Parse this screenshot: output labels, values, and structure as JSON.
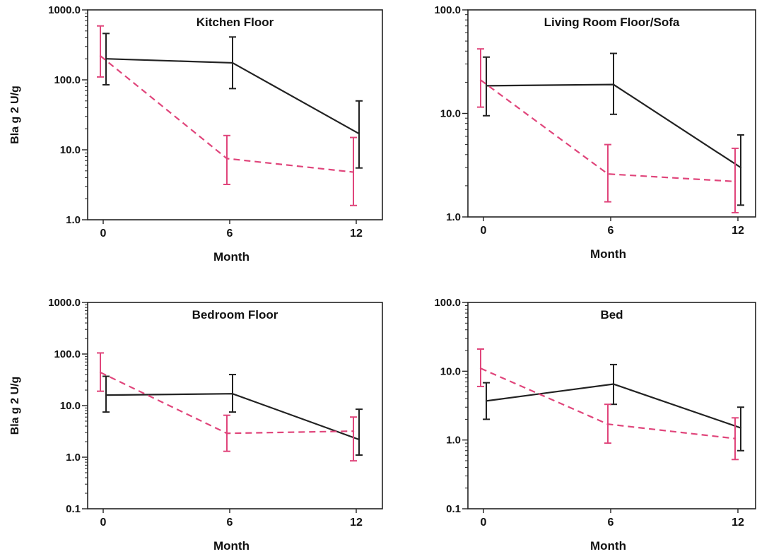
{
  "colors": {
    "solid_series": "#222222",
    "dashed_series": "#e0457b",
    "axis": "#222222"
  },
  "chart_data": [
    {
      "type": "line",
      "title": "Kitchen Floor",
      "xlabel": "Month",
      "ylabel": "Bla g 2 U/g",
      "yscale": "log",
      "ylim": [
        1,
        1000
      ],
      "yticks": [
        "1.0",
        "10.0",
        "100.0",
        "1000.0"
      ],
      "xticks": [
        "0",
        "6",
        "12"
      ],
      "x": [
        0,
        6,
        12
      ],
      "series": [
        {
          "style": "solid",
          "values": [
            200,
            175,
            17
          ],
          "err_low": [
            85,
            75,
            5.5
          ],
          "err_high": [
            460,
            410,
            50
          ]
        },
        {
          "style": "dashed",
          "values": [
            220,
            7.5,
            4.8
          ],
          "err_low": [
            110,
            3.2,
            1.6
          ],
          "err_high": [
            590,
            16,
            15
          ]
        }
      ]
    },
    {
      "type": "line",
      "title": "Living Room Floor/Sofa",
      "xlabel": "Month",
      "ylabel": "",
      "yscale": "log",
      "ylim": [
        1,
        100
      ],
      "yticks": [
        "1.0",
        "10.0",
        "100.0"
      ],
      "xticks": [
        "0",
        "6",
        "12"
      ],
      "x": [
        0,
        6,
        12
      ],
      "series": [
        {
          "style": "solid",
          "values": [
            18.5,
            19,
            3
          ],
          "err_low": [
            9.5,
            9.8,
            1.3
          ],
          "err_high": [
            35,
            38,
            6.2
          ]
        },
        {
          "style": "dashed",
          "values": [
            21,
            2.6,
            2.2
          ],
          "err_low": [
            11.5,
            1.4,
            1.1
          ],
          "err_high": [
            42,
            5,
            4.6
          ]
        }
      ]
    },
    {
      "type": "line",
      "title": "Bedroom Floor",
      "xlabel": "Month",
      "ylabel": "Bla g 2 U/g",
      "yscale": "log",
      "ylim": [
        0.1,
        1000
      ],
      "yticks": [
        "0.1",
        "1.0",
        "10.0",
        "100.0",
        "1000.0"
      ],
      "xticks": [
        "0",
        "6",
        "12"
      ],
      "x": [
        0,
        6,
        12
      ],
      "series": [
        {
          "style": "solid",
          "values": [
            16,
            17,
            2.2
          ],
          "err_low": [
            7.5,
            7.5,
            1.1
          ],
          "err_high": [
            37,
            40,
            8.5
          ]
        },
        {
          "style": "dashed",
          "values": [
            44,
            2.9,
            3.2
          ],
          "err_low": [
            19,
            1.3,
            0.85
          ],
          "err_high": [
            105,
            6.5,
            6
          ]
        }
      ]
    },
    {
      "type": "line",
      "title": "Bed",
      "xlabel": "Month",
      "ylabel": "",
      "yscale": "log",
      "ylim": [
        0.1,
        100
      ],
      "yticks": [
        "0.1",
        "1.0",
        "10.0",
        "100.0"
      ],
      "xticks": [
        "0",
        "6",
        "12"
      ],
      "x": [
        0,
        6,
        12
      ],
      "series": [
        {
          "style": "solid",
          "values": [
            3.7,
            6.5,
            1.5
          ],
          "err_low": [
            2,
            3.3,
            0.7
          ],
          "err_high": [
            6.8,
            12.5,
            3
          ]
        },
        {
          "style": "dashed",
          "values": [
            11,
            1.7,
            1.05
          ],
          "err_low": [
            6,
            0.9,
            0.52
          ],
          "err_high": [
            21,
            3.3,
            2.1
          ]
        }
      ]
    }
  ]
}
